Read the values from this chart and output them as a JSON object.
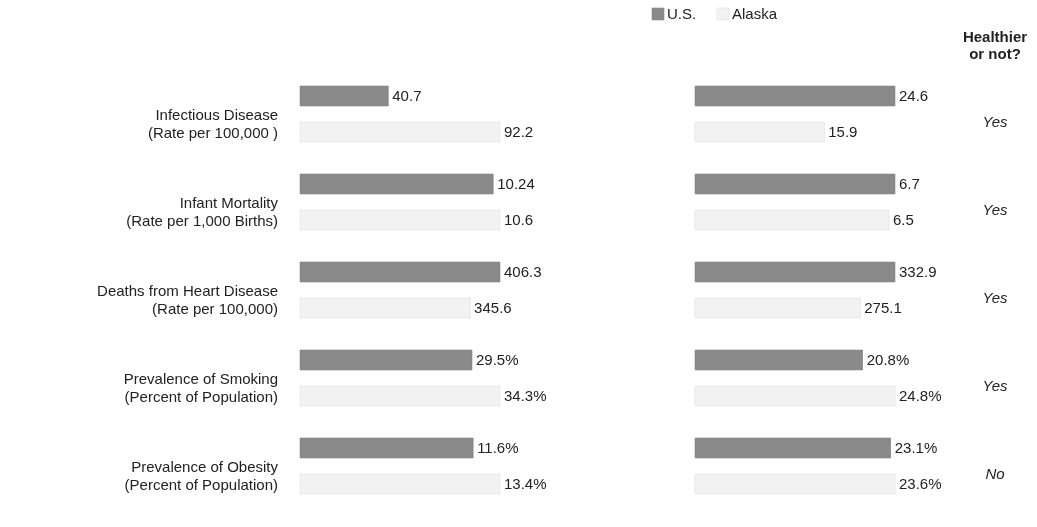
{
  "chart_data": [
    {
      "type": "bar",
      "orientation": "horizontal",
      "categories": [
        "Infectious Disease\n(Rate per 100,000 )"
      ],
      "series": [
        {
          "color": "#8a8a8a",
          "values": [
            40.7
          ],
          "value_labels": [
            "40.7"
          ]
        },
        {
          "color": "#f2f2f2",
          "values": [
            92.2
          ],
          "value_labels": [
            "92.2"
          ]
        }
      ]
    },
    {
      "type": "bar",
      "orientation": "horizontal",
      "categories": [
        null
      ],
      "legend": "top",
      "series": [
        {
          "name": "U.S.",
          "color": "#8a8a8a",
          "values": [
            24.6
          ],
          "value_labels": [
            "24.6"
          ]
        },
        {
          "name": "Alaska",
          "color": "#f2f2f2",
          "values": [
            15.9
          ],
          "value_labels": [
            "15.9"
          ]
        }
      ],
      "annotations": [
        "Healthier or not?",
        "Yes"
      ]
    },
    {
      "type": "bar",
      "orientation": "horizontal",
      "categories": [
        "Infant Mortality\n(Rate per 1,000 Births)"
      ],
      "series": [
        {
          "color": "#8a8a8a",
          "values": [
            10.24
          ],
          "value_labels": [
            "10.24"
          ]
        },
        {
          "color": "#f2f2f2",
          "values": [
            10.6
          ],
          "value_labels": [
            "10.6"
          ]
        }
      ]
    },
    {
      "type": "bar",
      "orientation": "horizontal",
      "categories": [
        null
      ],
      "series": [
        {
          "color": "#8a8a8a",
          "values": [
            6.7
          ],
          "value_labels": [
            "6.7"
          ]
        },
        {
          "color": "#f2f2f2",
          "values": [
            6.5
          ],
          "value_labels": [
            "6.5"
          ]
        }
      ],
      "annotations": [
        "Yes"
      ]
    },
    {
      "type": "bar",
      "orientation": "horizontal",
      "categories": [
        "Deaths from Heart Disease\n(Rate per 100,000)"
      ],
      "series": [
        {
          "color": "#8a8a8a",
          "values": [
            406.3
          ],
          "value_labels": [
            "406.3"
          ]
        },
        {
          "color": "#f2f2f2",
          "values": [
            345.6
          ],
          "value_labels": [
            "345.6"
          ]
        }
      ]
    },
    {
      "type": "bar",
      "orientation": "horizontal",
      "categories": [
        null
      ],
      "series": [
        {
          "color": "#8a8a8a",
          "values": [
            332.9
          ],
          "value_labels": [
            "332.9"
          ]
        },
        {
          "color": "#f2f2f2",
          "values": [
            275.1
          ],
          "value_labels": [
            "275.1"
          ]
        }
      ],
      "annotations": [
        "Yes"
      ]
    },
    {
      "type": "bar",
      "orientation": "horizontal",
      "categories": [
        "Prevalence of Smoking\n(Percent of Population)"
      ],
      "series": [
        {
          "color": "#8a8a8a",
          "values": [
            29.5
          ],
          "value_labels": [
            "29.5%"
          ]
        },
        {
          "color": "#f2f2f2",
          "values": [
            34.3
          ],
          "value_labels": [
            "34.3%"
          ]
        }
      ]
    },
    {
      "type": "bar",
      "orientation": "horizontal",
      "categories": [
        null
      ],
      "series": [
        {
          "color": "#8a8a8a",
          "values": [
            20.8
          ],
          "value_labels": [
            "20.8%"
          ]
        },
        {
          "color": "#f2f2f2",
          "values": [
            24.8
          ],
          "value_labels": [
            "24.8%"
          ]
        }
      ],
      "annotations": [
        "Yes"
      ]
    },
    {
      "type": "bar",
      "orientation": "horizontal",
      "categories": [
        "Prevalence of Obesity\n(Percent of Population)"
      ],
      "series": [
        {
          "color": "#8a8a8a",
          "values": [
            11.6
          ],
          "value_labels": [
            "11.6%"
          ]
        },
        {
          "color": "#f2f2f2",
          "values": [
            13.4
          ],
          "value_labels": [
            "13.4%"
          ]
        }
      ]
    },
    {
      "type": "bar",
      "orientation": "horizontal",
      "categories": [
        null
      ],
      "series": [
        {
          "color": "#8a8a8a",
          "values": [
            23.1
          ],
          "value_labels": [
            "23.1%"
          ]
        },
        {
          "color": "#f2f2f2",
          "values": [
            23.6
          ],
          "value_labels": [
            "23.6%"
          ]
        }
      ],
      "annotations": [
        "No"
      ]
    }
  ]
}
